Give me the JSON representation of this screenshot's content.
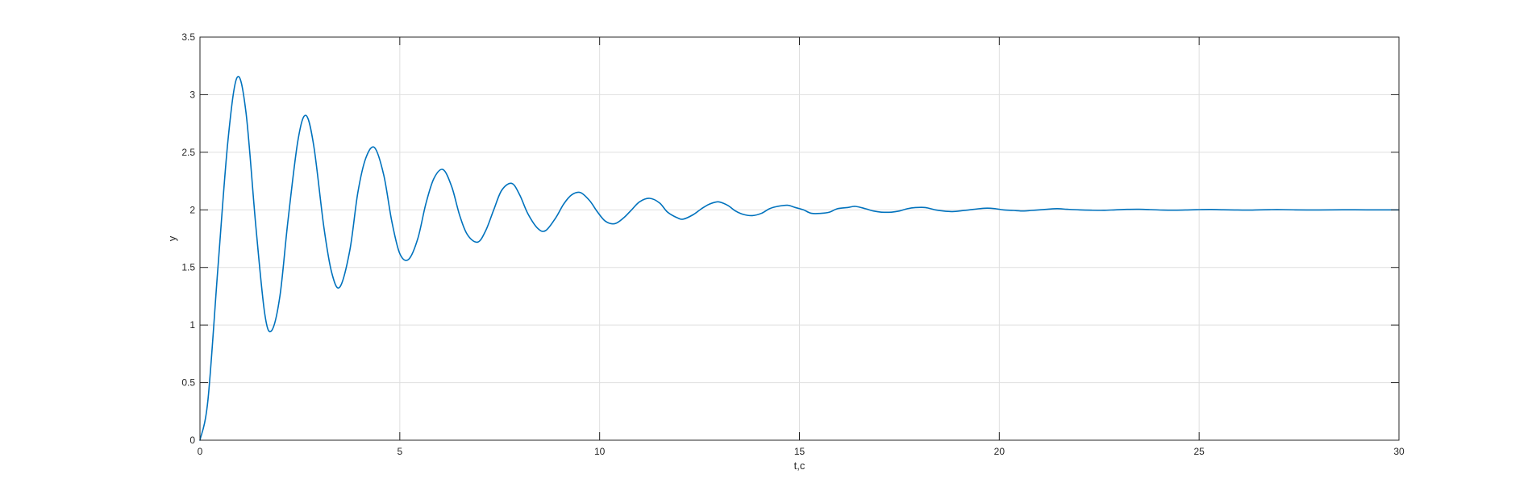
{
  "chart_data": {
    "type": "line",
    "title": "",
    "xlabel": "t,c",
    "ylabel": "y",
    "xlim": [
      0,
      30
    ],
    "ylim": [
      0,
      3.5
    ],
    "xticks": [
      0,
      5,
      10,
      15,
      20,
      25,
      30
    ],
    "yticks": [
      0,
      0.5,
      1,
      1.5,
      2,
      2.5,
      3,
      3.5
    ],
    "xtick_labels": [
      "0",
      "5",
      "10",
      "15",
      "20",
      "25",
      "30"
    ],
    "ytick_labels": [
      "0",
      "0.5",
      "1",
      "1.5",
      "2",
      "2.5",
      "3",
      "3.5"
    ],
    "grid": true,
    "series": [
      {
        "color": "#0072bd",
        "x": [
          0,
          0.2,
          0.45,
          0.7,
          0.93,
          1.15,
          1.4,
          1.62,
          1.79,
          2.0,
          2.2,
          2.45,
          2.65,
          2.85,
          3.1,
          3.3,
          3.5,
          3.75,
          3.95,
          4.15,
          4.37,
          4.6,
          4.8,
          5.0,
          5.22,
          5.45,
          5.65,
          5.85,
          6.08,
          6.3,
          6.5,
          6.7,
          6.95,
          7.15,
          7.35,
          7.55,
          7.8,
          8.0,
          8.2,
          8.45,
          8.65,
          8.9,
          9.1,
          9.3,
          9.52,
          9.75,
          9.95,
          10.15,
          10.38,
          10.6,
          10.8,
          11.0,
          11.25,
          11.5,
          11.7,
          11.95,
          12.1,
          12.35,
          12.55,
          12.75,
          12.97,
          13.2,
          13.4,
          13.6,
          13.82,
          14.05,
          14.25,
          14.45,
          14.7,
          14.9,
          15.1,
          15.3,
          15.55,
          15.75,
          15.95,
          16.2,
          16.4,
          16.65,
          16.85,
          17.05,
          17.3,
          17.5,
          17.7,
          17.9,
          18.15,
          18.4,
          18.6,
          18.8,
          19.0,
          19.25,
          19.5,
          19.7,
          19.9,
          20.1,
          20.35,
          20.6,
          20.8,
          21.0,
          21.2,
          21.45,
          21.7,
          22.0,
          22.3,
          22.6,
          22.9,
          23.2,
          23.5,
          23.8,
          24.1,
          24.4,
          24.7,
          25.0,
          25.3,
          25.6,
          25.9,
          26.2,
          26.5,
          26.8,
          27.1,
          27.4,
          27.7,
          28.0,
          28.3,
          28.6,
          28.9,
          29.2,
          29.5,
          30.0
        ],
        "y": [
          0,
          0.35,
          1.5,
          2.6,
          3.15,
          2.85,
          1.85,
          1.1,
          0.95,
          1.25,
          1.9,
          2.6,
          2.82,
          2.55,
          1.85,
          1.45,
          1.33,
          1.65,
          2.15,
          2.45,
          2.54,
          2.3,
          1.9,
          1.62,
          1.57,
          1.75,
          2.05,
          2.27,
          2.35,
          2.2,
          1.95,
          1.78,
          1.72,
          1.82,
          2.0,
          2.17,
          2.23,
          2.13,
          1.97,
          1.84,
          1.82,
          1.93,
          2.05,
          2.13,
          2.15,
          2.08,
          1.98,
          1.9,
          1.88,
          1.93,
          2.0,
          2.07,
          2.1,
          2.06,
          1.98,
          1.93,
          1.92,
          1.96,
          2.01,
          2.05,
          2.07,
          2.04,
          1.99,
          1.96,
          1.95,
          1.97,
          2.01,
          2.03,
          2.04,
          2.02,
          2.0,
          1.97,
          1.97,
          1.98,
          2.01,
          2.02,
          2.03,
          2.01,
          1.99,
          1.98,
          1.98,
          1.99,
          2.01,
          2.02,
          2.02,
          2.0,
          1.99,
          1.985,
          1.99,
          2.0,
          2.01,
          2.015,
          2.01,
          2.0,
          1.995,
          1.99,
          1.995,
          2.0,
          2.005,
          2.01,
          2.005,
          2.0,
          1.997,
          1.996,
          2.0,
          2.004,
          2.005,
          2.002,
          1.998,
          1.997,
          1.999,
          2.002,
          2.003,
          2.001,
          1.999,
          1.998,
          2.0,
          2.002,
          2.002,
          2.0,
          1.999,
          1.999,
          2.0,
          2.001,
          2.001,
          2.0,
          2.0,
          2.0
        ]
      }
    ]
  }
}
